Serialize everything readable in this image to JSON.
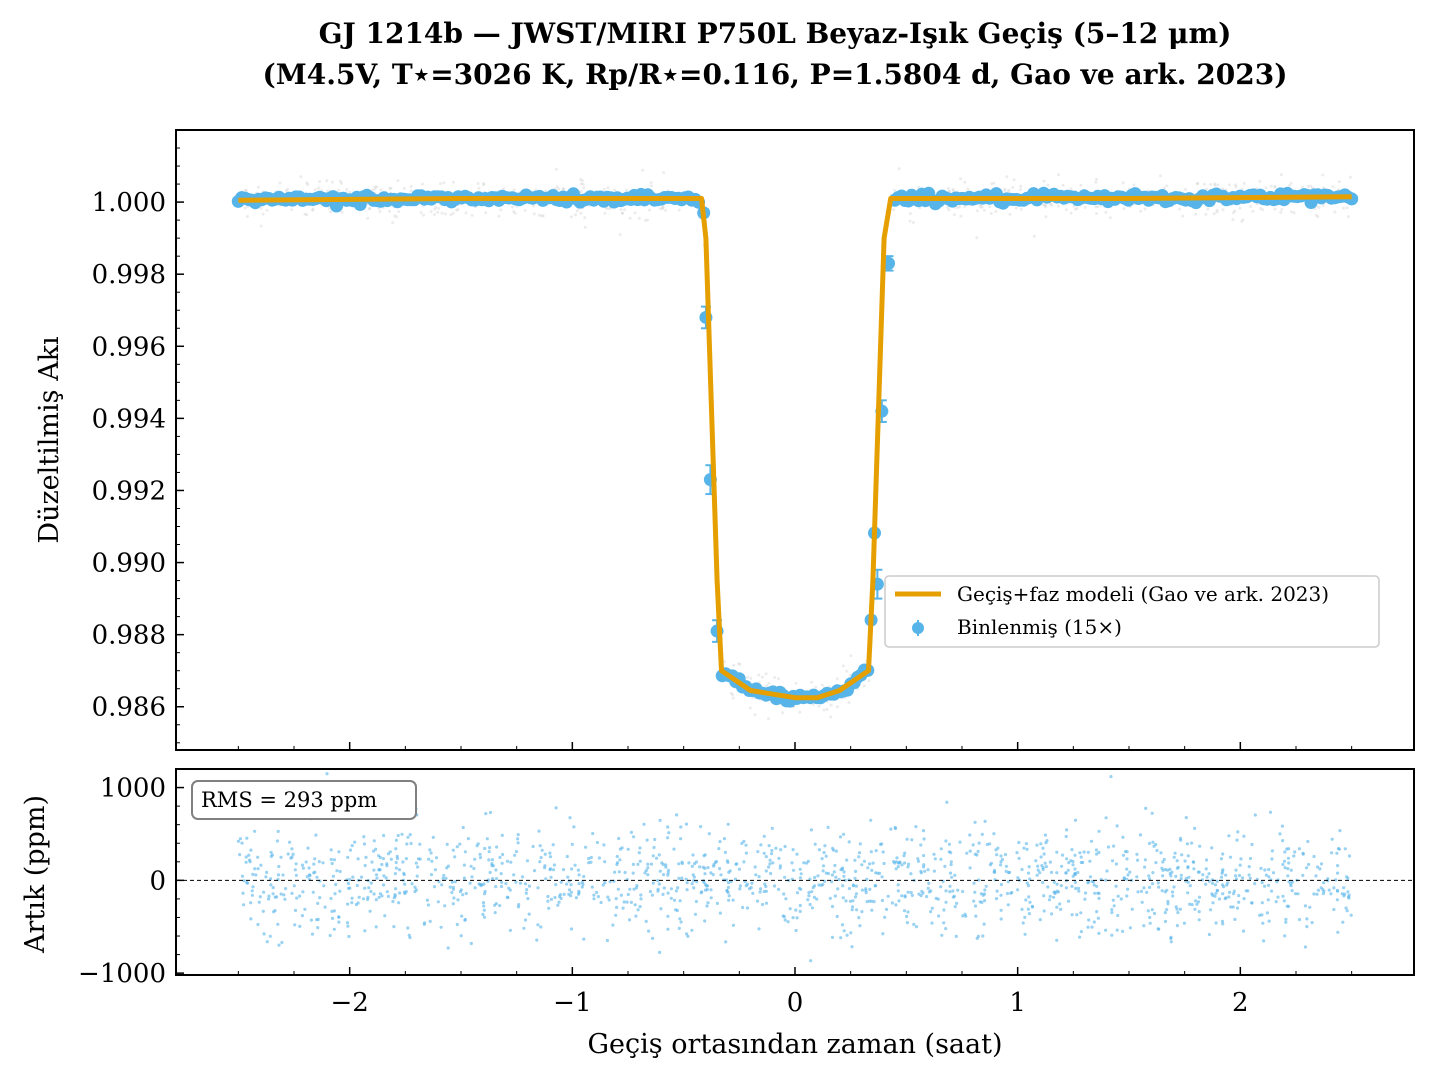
{
  "figure": {
    "title_line1": "GJ 1214b — JWST/MIRI P750L Beyaz-Işık Geçiş (5–12 μm)",
    "title_line2": "(M4.5V, T⋆=3026 K, Rp/R⋆=0.116, P=1.5804 d, Gao ve ark. 2023)"
  },
  "colors": {
    "model": "#e69f00",
    "binned": "#56b4e9",
    "raw": "#c8c8c8",
    "residual": "#56b4e9"
  },
  "chart_data": [
    {
      "type": "line",
      "panel": "top",
      "ylabel": "Düzeltilmiş Akı",
      "xlim": [
        -2.78,
        2.78
      ],
      "ylim": [
        0.9848,
        1.002
      ],
      "yticks": [
        0.986,
        0.988,
        0.99,
        0.992,
        0.994,
        0.996,
        0.998,
        1.0
      ],
      "ytick_labels": [
        "0.986",
        "0.988",
        "0.990",
        "0.992",
        "0.994",
        "0.996",
        "0.998",
        "1.000"
      ],
      "legend": {
        "placement": "lower-right",
        "model_label": "Geçiş+faz modeli (Gao ve ark. 2023)",
        "binned_label": "Binlenmiş (15×)"
      },
      "model": {
        "name": "Geçiş+faz modeli (Gao ve ark. 2023)",
        "x": [
          -2.5,
          -1.5,
          -0.5,
          -0.42,
          -0.4,
          -0.35,
          -0.33,
          -0.2,
          0.0,
          0.1,
          0.2,
          0.33,
          0.35,
          0.4,
          0.43,
          0.5,
          1.5,
          2.5
        ],
        "y": [
          1.00005,
          1.0001,
          1.0001,
          1.0001,
          0.999,
          0.9895,
          0.987,
          0.98645,
          0.98625,
          0.98625,
          0.98645,
          0.987,
          0.9895,
          0.999,
          1.0001,
          1.0001,
          1.0001,
          1.00015
        ]
      },
      "binned_ingress_egress": {
        "name": "Binlenmiş (15×)",
        "x": [
          -0.41,
          -0.4,
          -0.38,
          -0.35,
          0.37,
          0.39,
          0.42
        ],
        "y": [
          0.9997,
          0.9968,
          0.9923,
          0.9881,
          0.9894,
          0.9942,
          0.9983
        ],
        "err": [
          0.0001,
          0.0003,
          0.0004,
          0.0003,
          0.0004,
          0.0003,
          0.0002
        ]
      }
    },
    {
      "type": "scatter",
      "panel": "bottom",
      "xlabel": "Geçiş ortasından zaman (saat)",
      "ylabel": "Artık (ppm)",
      "xlim": [
        -2.78,
        2.78
      ],
      "ylim": [
        -1020,
        1200
      ],
      "xticks": [
        -2,
        -1,
        0,
        1,
        2
      ],
      "xtick_labels": [
        "−2",
        "−1",
        "0",
        "1",
        "2"
      ],
      "yticks": [
        -1000,
        0,
        1000
      ],
      "ytick_labels": [
        "−1000",
        "0",
        "1000"
      ],
      "rms_label": "RMS = 293 ppm",
      "x_range": [
        -2.5,
        2.5
      ],
      "rms_ppm": 293
    }
  ]
}
